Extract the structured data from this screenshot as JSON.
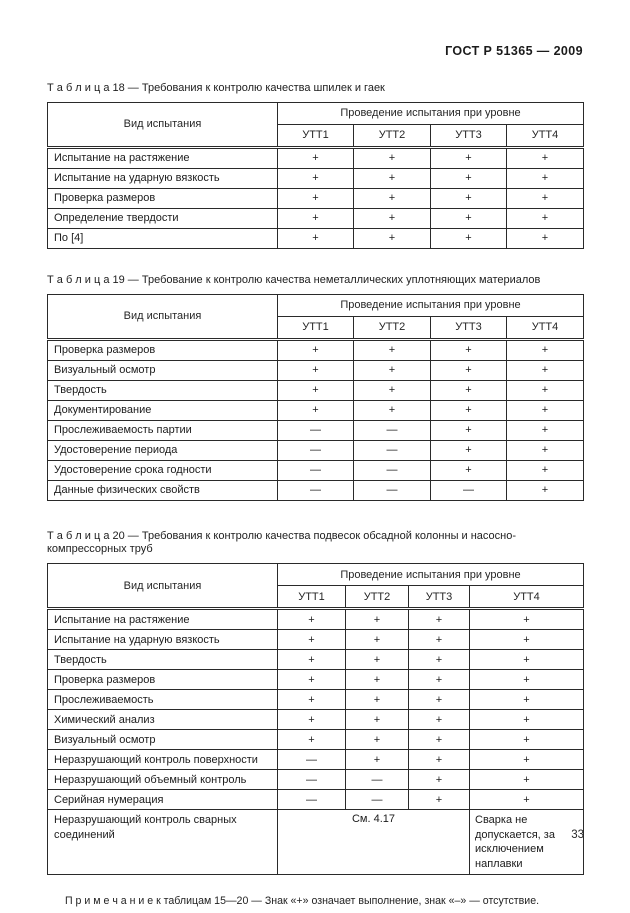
{
  "header": {
    "code": "ГОСТ Р 51365 — 2009"
  },
  "footer": {
    "page_number": "33"
  },
  "note": {
    "text": "П р и м е ч а н и е  к таблицам  15—20 —  Знак «+» означает выполнение, знак «–» — отсутствие."
  },
  "tables": [
    {
      "caption": "Т а б л и ц а  18 — Требования к контролю качества шпилек и гаек",
      "header": {
        "type_col": "Вид испытания",
        "span_col": "Проведение испытания при уровне",
        "levels": [
          "УТТ1",
          "УТТ2",
          "УТТ3",
          "УТТ4"
        ]
      },
      "rows": [
        {
          "label": "Испытание на растяжение",
          "values": [
            "+",
            "+",
            "+",
            "+"
          ]
        },
        {
          "label": "Испытание на ударную вязкость",
          "values": [
            "+",
            "+",
            "+",
            "+"
          ]
        },
        {
          "label": "Проверка размеров",
          "values": [
            "+",
            "+",
            "+",
            "+"
          ]
        },
        {
          "label": "Определение твердости",
          "values": [
            "+",
            "+",
            "+",
            "+"
          ]
        },
        {
          "label": "По [4]",
          "values": [
            "+",
            "+",
            "+",
            "+"
          ]
        }
      ]
    },
    {
      "caption": "Т а б л и ц а  19 — Требование к контролю качества неметаллических уплотняющих материалов",
      "header": {
        "type_col": "Вид испытания",
        "span_col": "Проведение испытания при уровне",
        "levels": [
          "УТТ1",
          "УТТ2",
          "УТТ3",
          "УТТ4"
        ]
      },
      "rows": [
        {
          "label": "Проверка размеров",
          "values": [
            "+",
            "+",
            "+",
            "+"
          ]
        },
        {
          "label": "Визуальный осмотр",
          "values": [
            "+",
            "+",
            "+",
            "+"
          ]
        },
        {
          "label": "Твердость",
          "values": [
            "+",
            "+",
            "+",
            "+"
          ]
        },
        {
          "label": "Документирование",
          "values": [
            "+",
            "+",
            "+",
            "+"
          ]
        },
        {
          "label": "Прослеживаемость партии",
          "values": [
            "—",
            "—",
            "+",
            "+"
          ]
        },
        {
          "label": "Удостоверение периода",
          "values": [
            "—",
            "—",
            "+",
            "+"
          ]
        },
        {
          "label": "Удостоверение  срока годности",
          "values": [
            "—",
            "—",
            "+",
            "+"
          ]
        },
        {
          "label": "Данные физических свойств",
          "values": [
            "—",
            "—",
            "—",
            "+"
          ]
        }
      ]
    },
    {
      "caption": "Т а б л и ц а 20 — Требования к контролю качества подвесок обсадной колонны и насосно-компрессорных труб",
      "header": {
        "type_col": "Вид испытания",
        "span_col": "Проведение испытания при уровне",
        "levels": [
          "УТТ1",
          "УТТ2",
          "УТТ3",
          "УТТ4"
        ]
      },
      "rows": [
        {
          "label": "Испытание на растяжение",
          "values": [
            "+",
            "+",
            "+",
            "+"
          ]
        },
        {
          "label": "Испытание на ударную вязкость",
          "values": [
            "+",
            "+",
            "+",
            "+"
          ]
        },
        {
          "label": "Твердость",
          "values": [
            "+",
            "+",
            "+",
            "+"
          ]
        },
        {
          "label": "Проверка размеров",
          "values": [
            "+",
            "+",
            "+",
            "+"
          ]
        },
        {
          "label": "Прослеживаемость",
          "values": [
            "+",
            "+",
            "+",
            "+"
          ]
        },
        {
          "label": "Химический анализ",
          "values": [
            "+",
            "+",
            "+",
            "+"
          ]
        },
        {
          "label": "Визуальный осмотр",
          "values": [
            "+",
            "+",
            "+",
            "+"
          ]
        },
        {
          "label": "Неразрушающий контроль поверхности",
          "values": [
            "—",
            "+",
            "+",
            "+"
          ]
        },
        {
          "label": "Неразрушающий объемный контроль",
          "values": [
            "—",
            "—",
            "+",
            "+"
          ]
        },
        {
          "label": "Серийная нумерация",
          "values": [
            "—",
            "—",
            "+",
            "+"
          ]
        },
        {
          "label": "Неразрушающий контроль сварных соединений",
          "span_value": "См. 4.17",
          "span_cols": 3,
          "last_value": "Сварка не допускается, за исключением наплавки"
        }
      ]
    }
  ]
}
